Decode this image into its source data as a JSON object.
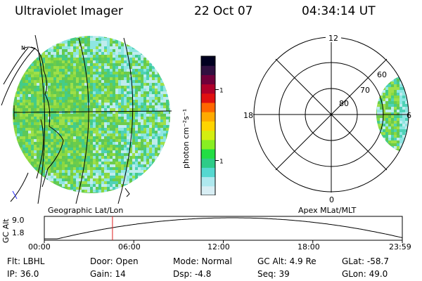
{
  "header": {
    "instrument": "Ultraviolet Imager",
    "date": "22 Oct 07",
    "time": "04:34:14 UT"
  },
  "colors": {
    "scale": [
      "#d8eef4",
      "#aee8ee",
      "#55d8d0",
      "#2ecc88",
      "#22dd44",
      "#88ee22",
      "#d4ee10",
      "#ffd400",
      "#ffaa00",
      "#ff6600",
      "#e01010",
      "#b0002a",
      "#70003a",
      "#301040",
      "#000020"
    ],
    "pixel_palette": [
      "#8ad840",
      "#6ccc4a",
      "#9ee04a",
      "#5cc858",
      "#44cc88",
      "#4ed2b6",
      "#8ee6e2",
      "#bfecee",
      "#2ec49a"
    ],
    "ephem_curve": "#000000",
    "time_marker": "#dd2020"
  },
  "colorbar": {
    "unit_label": "photon cm⁻²s⁻¹",
    "ticks": [
      {
        "label": "100",
        "frac": 0.24
      },
      {
        "label": "10",
        "frac": 0.75
      }
    ]
  },
  "geo_map": {
    "label": "Geographic Lat/Lon",
    "pole_label": "N"
  },
  "polar_plot": {
    "label": "Apex MLat/MLT",
    "mlt_labels": {
      "top": "12",
      "left": "18",
      "right": "6",
      "bottom": "0"
    },
    "mlat_labels": [
      "80",
      "70",
      "60"
    ]
  },
  "ephemeris": {
    "axis_title": "GC Alt",
    "y_ticks": [
      "9.0",
      "1.8"
    ],
    "x_ticks": [
      "00:00",
      "06:00",
      "12:00",
      "18:00",
      "23:59"
    ],
    "marker_time_hours": 4.57
  },
  "status": {
    "filter": "Flt: LBHL",
    "door": "Door: Open",
    "mode": "Mode: Normal",
    "gc_alt": "GC Alt: 4.9 Re",
    "glat": "GLat: -58.7",
    "ip": "IP: 36.0",
    "gain": "Gain: 14",
    "dsp": "Dsp:    -4.8",
    "seq": "Seq: 39",
    "glon": "GLon:  49.0"
  }
}
